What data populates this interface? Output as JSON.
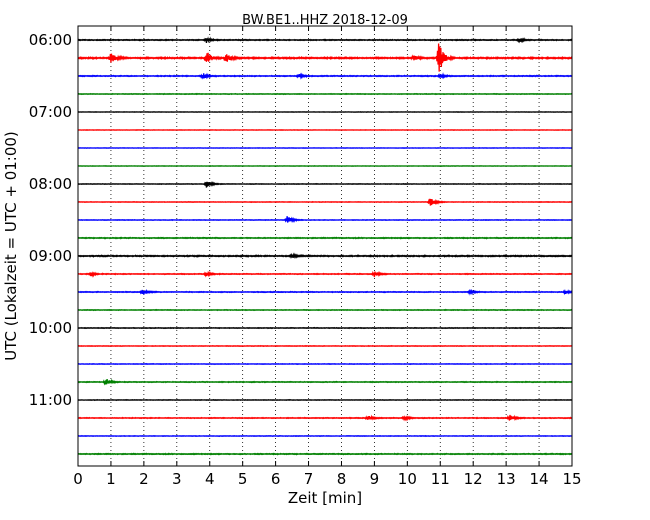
{
  "chart_data": {
    "type": "line",
    "title": "BW.BE1..HHZ 2018-12-09",
    "xlabel": "Zeit  [min]",
    "ylabel": "UTC (Lokalzeit = UTC + 01:00)",
    "xlim": [
      0,
      15
    ],
    "x_ticks": [
      0,
      1,
      2,
      3,
      4,
      5,
      6,
      7,
      8,
      9,
      10,
      11,
      12,
      13,
      14,
      15
    ],
    "x_tick_labels": [
      "0",
      "1",
      "2",
      "3",
      "4",
      "5",
      "6",
      "7",
      "8",
      "9",
      "10",
      "11",
      "12",
      "13",
      "14",
      "15"
    ],
    "y_tick_labels": [
      "06:00",
      "07:00",
      "08:00",
      "09:00",
      "10:00",
      "11:00"
    ],
    "grid": "vertical dotted",
    "trace_interval_minutes": 15,
    "colors": [
      "#000000",
      "#ff0000",
      "#0000ff",
      "#008000"
    ],
    "traces": [
      {
        "start": "06:00",
        "color": "#000000",
        "noise": 0.35,
        "events": [
          {
            "t": 3.9,
            "amp": 1.2
          },
          {
            "t": 13.4,
            "amp": 0.8
          }
        ]
      },
      {
        "start": "06:15",
        "color": "#ff0000",
        "noise": 0.55,
        "events": [
          {
            "t": 1.0,
            "amp": 2.5
          },
          {
            "t": 3.9,
            "amp": 3.2
          },
          {
            "t": 4.5,
            "amp": 2.0
          },
          {
            "t": 10.2,
            "amp": 1.2
          },
          {
            "t": 10.95,
            "amp": 8.0
          }
        ]
      },
      {
        "start": "06:30",
        "color": "#0000ff",
        "noise": 0.35,
        "events": [
          {
            "t": 3.8,
            "amp": 1.3
          },
          {
            "t": 6.7,
            "amp": 0.8
          },
          {
            "t": 11.0,
            "amp": 0.9
          }
        ]
      },
      {
        "start": "06:45",
        "color": "#008000",
        "noise": 0.25,
        "events": []
      },
      {
        "start": "07:00",
        "color": "#000000",
        "noise": 0.15,
        "events": []
      },
      {
        "start": "07:15",
        "color": "#ff0000",
        "noise": 0.15,
        "events": []
      },
      {
        "start": "07:30",
        "color": "#0000ff",
        "noise": 0.15,
        "events": []
      },
      {
        "start": "07:45",
        "color": "#008000",
        "noise": 0.15,
        "events": []
      },
      {
        "start": "08:00",
        "color": "#000000",
        "noise": 0.2,
        "events": [
          {
            "t": 3.9,
            "amp": 1.8
          }
        ]
      },
      {
        "start": "08:15",
        "color": "#ff0000",
        "noise": 0.2,
        "events": [
          {
            "t": 10.7,
            "amp": 2.2
          }
        ]
      },
      {
        "start": "08:30",
        "color": "#0000ff",
        "noise": 0.2,
        "events": [
          {
            "t": 6.35,
            "amp": 2.0
          }
        ]
      },
      {
        "start": "08:45",
        "color": "#008000",
        "noise": 0.35,
        "events": []
      },
      {
        "start": "09:00",
        "color": "#000000",
        "noise": 0.45,
        "events": [
          {
            "t": 6.5,
            "amp": 0.9
          }
        ]
      },
      {
        "start": "09:15",
        "color": "#ff0000",
        "noise": 0.3,
        "events": [
          {
            "t": 0.4,
            "amp": 0.8
          },
          {
            "t": 3.9,
            "amp": 0.9
          },
          {
            "t": 9.0,
            "amp": 1.3
          }
        ]
      },
      {
        "start": "09:30",
        "color": "#0000ff",
        "noise": 0.3,
        "events": [
          {
            "t": 1.95,
            "amp": 1.5
          },
          {
            "t": 11.9,
            "amp": 0.7
          },
          {
            "t": 14.8,
            "amp": 0.9
          }
        ]
      },
      {
        "start": "09:45",
        "color": "#008000",
        "noise": 0.25,
        "events": []
      },
      {
        "start": "10:00",
        "color": "#000000",
        "noise": 0.25,
        "events": []
      },
      {
        "start": "10:15",
        "color": "#ff0000",
        "noise": 0.2,
        "events": []
      },
      {
        "start": "10:30",
        "color": "#0000ff",
        "noise": 0.2,
        "events": []
      },
      {
        "start": "10:45",
        "color": "#008000",
        "noise": 0.3,
        "events": [
          {
            "t": 0.85,
            "amp": 1.6
          }
        ]
      },
      {
        "start": "11:00",
        "color": "#000000",
        "noise": 0.2,
        "events": []
      },
      {
        "start": "11:15",
        "color": "#ff0000",
        "noise": 0.3,
        "events": [
          {
            "t": 8.8,
            "amp": 1.2
          },
          {
            "t": 9.9,
            "amp": 0.7
          },
          {
            "t": 13.1,
            "amp": 1.5
          }
        ]
      },
      {
        "start": "11:30",
        "color": "#0000ff",
        "noise": 0.2,
        "events": []
      },
      {
        "start": "11:45",
        "color": "#008000",
        "noise": 0.35,
        "events": []
      }
    ]
  }
}
